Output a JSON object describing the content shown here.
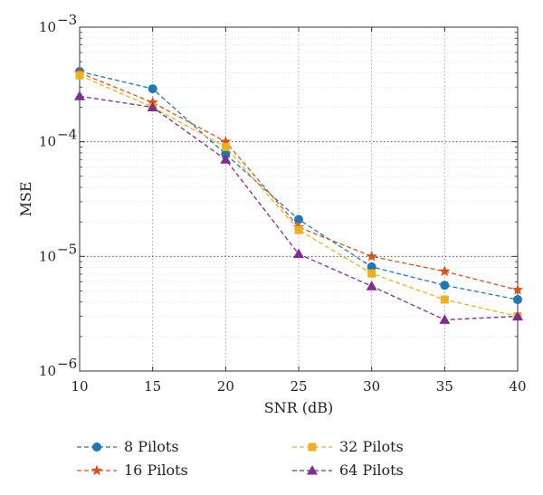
{
  "chart_data": {
    "type": "line",
    "xlabel": "SNR (dB)",
    "ylabel": "MSE",
    "x": [
      10,
      15,
      20,
      25,
      30,
      35,
      40
    ],
    "xlim": [
      10,
      40
    ],
    "ylim": [
      1e-06,
      0.001
    ],
    "yscale": "log",
    "x_ticks": [
      "10",
      "15",
      "20",
      "25",
      "30",
      "35",
      "40"
    ],
    "y_ticks": [
      {
        "value": 0.001,
        "base": "10",
        "exp": "−3"
      },
      {
        "value": 0.0001,
        "base": "10",
        "exp": "−4"
      },
      {
        "value": 1e-05,
        "base": "10",
        "exp": "−5"
      },
      {
        "value": 1e-06,
        "base": "10",
        "exp": "−6"
      }
    ],
    "grid": true,
    "legend_position": "bottom",
    "series": [
      {
        "name": "8 Pilots",
        "color": "#1f77b4",
        "marker": "circle",
        "values": [
          0.00041,
          0.00029,
          7.8e-05,
          2.1e-05,
          8.1e-06,
          5.6e-06,
          4.2e-06
        ]
      },
      {
        "name": "16 Pilots",
        "color": "#d95319",
        "marker": "star",
        "values": [
          0.0004,
          0.00022,
          0.0001,
          1.8e-05,
          1e-05,
          7.4e-06,
          5.1e-06
        ]
      },
      {
        "name": "32 Pilots",
        "color": "#edb120",
        "marker": "square",
        "values": [
          0.00038,
          0.0002,
          9e-05,
          1.7e-05,
          7.1e-06,
          4.2e-06,
          3e-06
        ]
      },
      {
        "name": "64 Pilots",
        "color": "#7e2f8e",
        "marker": "triangle",
        "values": [
          0.00025,
          0.0002,
          7e-05,
          1.05e-05,
          5.5e-06,
          2.8e-06,
          3e-06
        ]
      }
    ]
  }
}
